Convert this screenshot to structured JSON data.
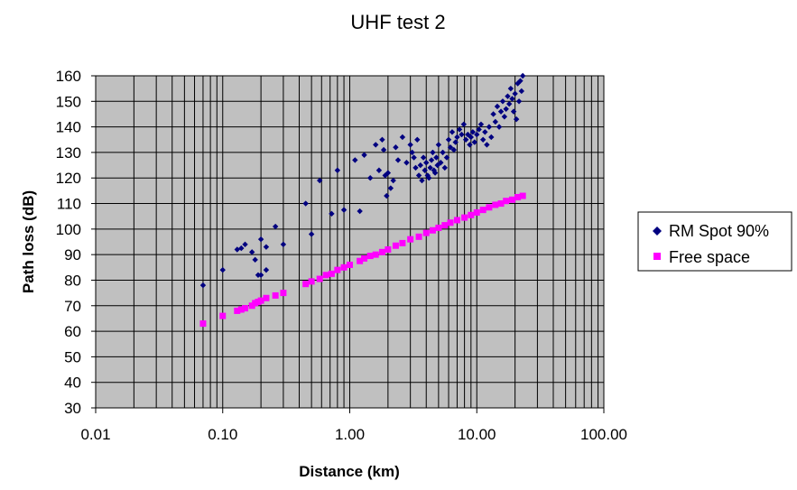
{
  "chart_data": {
    "type": "scatter",
    "title": "UHF test 2",
    "xlabel": "Distance (km)",
    "ylabel": "Path loss (dB)",
    "xscale": "log",
    "xlim": [
      0.01,
      100
    ],
    "ylim": [
      30,
      160
    ],
    "xticks": [
      "0.01",
      "0.10",
      "1.00",
      "10.00",
      "100.00"
    ],
    "yticks": [
      "30",
      "40",
      "50",
      "60",
      "70",
      "80",
      "90",
      "100",
      "110",
      "120",
      "130",
      "140",
      "150",
      "160"
    ],
    "grid": true,
    "plot_background": "#c0c0c0",
    "legend_position": "right",
    "series": [
      {
        "name": "RM Spot 90%",
        "marker": "diamond",
        "color": "#000080",
        "points": [
          [
            0.07,
            78
          ],
          [
            0.1,
            84
          ],
          [
            0.13,
            92
          ],
          [
            0.14,
            92.5
          ],
          [
            0.15,
            94
          ],
          [
            0.17,
            91
          ],
          [
            0.18,
            88
          ],
          [
            0.19,
            82
          ],
          [
            0.2,
            82
          ],
          [
            0.2,
            96
          ],
          [
            0.22,
            93
          ],
          [
            0.22,
            84
          ],
          [
            0.26,
            101
          ],
          [
            0.3,
            94
          ],
          [
            0.45,
            110
          ],
          [
            0.5,
            98
          ],
          [
            0.58,
            119
          ],
          [
            0.72,
            106
          ],
          [
            0.8,
            123
          ],
          [
            0.9,
            107.5
          ],
          [
            1.1,
            127
          ],
          [
            1.2,
            107
          ],
          [
            1.3,
            129
          ],
          [
            1.45,
            120
          ],
          [
            1.6,
            133
          ],
          [
            1.7,
            123
          ],
          [
            1.8,
            135
          ],
          [
            1.85,
            131
          ],
          [
            1.9,
            121
          ],
          [
            1.95,
            113
          ],
          [
            2.0,
            122
          ],
          [
            2.1,
            116
          ],
          [
            2.2,
            119
          ],
          [
            2.3,
            132
          ],
          [
            2.4,
            127
          ],
          [
            2.6,
            136
          ],
          [
            2.8,
            126
          ],
          [
            3.0,
            133
          ],
          [
            3.1,
            130
          ],
          [
            3.2,
            128
          ],
          [
            3.3,
            124
          ],
          [
            3.4,
            135
          ],
          [
            3.5,
            121
          ],
          [
            3.6,
            125
          ],
          [
            3.7,
            119
          ],
          [
            3.8,
            128
          ],
          [
            3.9,
            123
          ],
          [
            4.0,
            126
          ],
          [
            4.1,
            121
          ],
          [
            4.2,
            120
          ],
          [
            4.3,
            124
          ],
          [
            4.4,
            127
          ],
          [
            4.5,
            130
          ],
          [
            4.6,
            123
          ],
          [
            4.7,
            122
          ],
          [
            4.8,
            128
          ],
          [
            4.9,
            125
          ],
          [
            5.0,
            133
          ],
          [
            5.2,
            126
          ],
          [
            5.4,
            130
          ],
          [
            5.6,
            124
          ],
          [
            5.8,
            128
          ],
          [
            6.0,
            135
          ],
          [
            6.2,
            132
          ],
          [
            6.4,
            138
          ],
          [
            6.6,
            131
          ],
          [
            6.8,
            134
          ],
          [
            7.0,
            136
          ],
          [
            7.3,
            139
          ],
          [
            7.6,
            137
          ],
          [
            7.9,
            141
          ],
          [
            8.2,
            135
          ],
          [
            8.5,
            137
          ],
          [
            8.8,
            133
          ],
          [
            9.0,
            136
          ],
          [
            9.3,
            138
          ],
          [
            9.6,
            134
          ],
          [
            10.0,
            137
          ],
          [
            10.4,
            139
          ],
          [
            10.8,
            141
          ],
          [
            11.2,
            135
          ],
          [
            11.6,
            138
          ],
          [
            12.0,
            133
          ],
          [
            12.5,
            140
          ],
          [
            13.0,
            136
          ],
          [
            13.5,
            145
          ],
          [
            14.0,
            142
          ],
          [
            14.5,
            148
          ],
          [
            15.0,
            140
          ],
          [
            15.5,
            146
          ],
          [
            16.0,
            150
          ],
          [
            16.5,
            144
          ],
          [
            17.0,
            147
          ],
          [
            17.5,
            152
          ],
          [
            18.0,
            149
          ],
          [
            18.5,
            155
          ],
          [
            19.0,
            151
          ],
          [
            19.5,
            146
          ],
          [
            20.0,
            153
          ],
          [
            20.5,
            143
          ],
          [
            21.0,
            157
          ],
          [
            21.5,
            150
          ],
          [
            22.0,
            158
          ],
          [
            22.5,
            154
          ],
          [
            23.0,
            160
          ]
        ]
      },
      {
        "name": "Free space",
        "marker": "square",
        "color": "#ff00ff",
        "points": [
          [
            0.07,
            63
          ],
          [
            0.1,
            66
          ],
          [
            0.13,
            68
          ],
          [
            0.14,
            68.5
          ],
          [
            0.15,
            69
          ],
          [
            0.17,
            70
          ],
          [
            0.18,
            71
          ],
          [
            0.19,
            71.5
          ],
          [
            0.2,
            72
          ],
          [
            0.22,
            73
          ],
          [
            0.26,
            74
          ],
          [
            0.3,
            75
          ],
          [
            0.45,
            78.5
          ],
          [
            0.5,
            79.5
          ],
          [
            0.58,
            80.5
          ],
          [
            0.65,
            82
          ],
          [
            0.72,
            82.5
          ],
          [
            0.8,
            84
          ],
          [
            0.9,
            85
          ],
          [
            1.0,
            86
          ],
          [
            1.2,
            87.5
          ],
          [
            1.3,
            88.5
          ],
          [
            1.45,
            89.5
          ],
          [
            1.6,
            90
          ],
          [
            1.8,
            91
          ],
          [
            2.0,
            92
          ],
          [
            2.3,
            93.5
          ],
          [
            2.6,
            94.5
          ],
          [
            3.0,
            96
          ],
          [
            3.5,
            97
          ],
          [
            4.0,
            98.5
          ],
          [
            4.5,
            99.5
          ],
          [
            5.0,
            100.5
          ],
          [
            5.6,
            101.5
          ],
          [
            6.2,
            102.5
          ],
          [
            7.0,
            103.5
          ],
          [
            8.0,
            104.5
          ],
          [
            9.0,
            105.5
          ],
          [
            10.0,
            106.5
          ],
          [
            11.2,
            107.5
          ],
          [
            12.5,
            108.5
          ],
          [
            14.0,
            109.5
          ],
          [
            15.5,
            110
          ],
          [
            17.0,
            111
          ],
          [
            19.0,
            111.5
          ],
          [
            21.0,
            112.5
          ],
          [
            23.0,
            113
          ]
        ]
      }
    ]
  }
}
